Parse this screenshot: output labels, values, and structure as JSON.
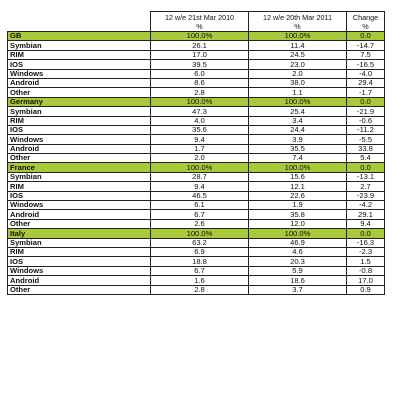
{
  "header": {
    "col1": [
      "12 w/e 21st Mar 2010",
      "%"
    ],
    "col2": [
      "12 w/e 20th Mar 2011",
      "%"
    ],
    "col3": [
      "Change",
      "%"
    ]
  },
  "sections": [
    {
      "region": "GB",
      "total": [
        "100.0%",
        "100.0%",
        "0.0"
      ],
      "rows": [
        {
          "os": "Symbian",
          "v2010": "26.1",
          "v2011": "11.4",
          "change": "-14.7"
        },
        {
          "os": "RIM",
          "v2010": "17.0",
          "v2011": "24.5",
          "change": "7.5"
        },
        {
          "os": "IOS",
          "v2010": "39.5",
          "v2011": "23.0",
          "change": "-16.5"
        },
        {
          "os": "Windows",
          "v2010": "6.0",
          "v2011": "2.0",
          "change": "-4.0"
        },
        {
          "os": "Android",
          "v2010": "8.6",
          "v2011": "38.0",
          "change": "29.4"
        },
        {
          "os": "Other",
          "v2010": "2.8",
          "v2011": "1.1",
          "change": "-1.7"
        }
      ]
    },
    {
      "region": "Germany",
      "total": [
        "100.0%",
        "100.0%",
        "0.0"
      ],
      "rows": [
        {
          "os": "Symbian",
          "v2010": "47.3",
          "v2011": "25.4",
          "change": "-21.9"
        },
        {
          "os": "RIM",
          "v2010": "4.0",
          "v2011": "3.4",
          "change": "-0.6"
        },
        {
          "os": "IOS",
          "v2010": "35.6",
          "v2011": "24.4",
          "change": "-11.2"
        },
        {
          "os": "Windows",
          "v2010": "9.4",
          "v2011": "3.9",
          "change": "-5.5"
        },
        {
          "os": "Android",
          "v2010": "1.7",
          "v2011": "35.5",
          "change": "33.8"
        },
        {
          "os": "Other",
          "v2010": "2.0",
          "v2011": "7.4",
          "change": "5.4"
        }
      ]
    },
    {
      "region": "France",
      "total": [
        "100.0%",
        "100.0%",
        "0.0"
      ],
      "rows": [
        {
          "os": "Symbian",
          "v2010": "28.7",
          "v2011": "15.6",
          "change": "-13.1"
        },
        {
          "os": "RIM",
          "v2010": "9.4",
          "v2011": "12.1",
          "change": "2.7"
        },
        {
          "os": "IOS",
          "v2010": "46.5",
          "v2011": "22.6",
          "change": "-23.9"
        },
        {
          "os": "Windows",
          "v2010": "6.1",
          "v2011": "1.9",
          "change": "-4.2"
        },
        {
          "os": "Android",
          "v2010": "6.7",
          "v2011": "35.8",
          "change": "29.1"
        },
        {
          "os": "Other",
          "v2010": "2.6",
          "v2011": "12.0",
          "change": "9.4"
        }
      ]
    },
    {
      "region": "Italy",
      "total": [
        "100.0%",
        "100.0%",
        "0.0"
      ],
      "rows": [
        {
          "os": "Symbian",
          "v2010": "63.2",
          "v2011": "46.9",
          "change": "-16.3"
        },
        {
          "os": "RIM",
          "v2010": "6.9",
          "v2011": "4.6",
          "change": "-2.3"
        },
        {
          "os": "IOS",
          "v2010": "18.8",
          "v2011": "20.3",
          "change": "1.5"
        },
        {
          "os": "Windows",
          "v2010": "6.7",
          "v2011": "5.9",
          "change": "-0.8"
        },
        {
          "os": "Android",
          "v2010": "1.6",
          "v2011": "18.6",
          "change": "17.0"
        },
        {
          "os": "Other",
          "v2010": "2.8",
          "v2011": "3.7",
          "change": "0.9"
        }
      ]
    }
  ],
  "colors": {
    "section_header_bg": "#a8c93a",
    "border": "#222222"
  }
}
